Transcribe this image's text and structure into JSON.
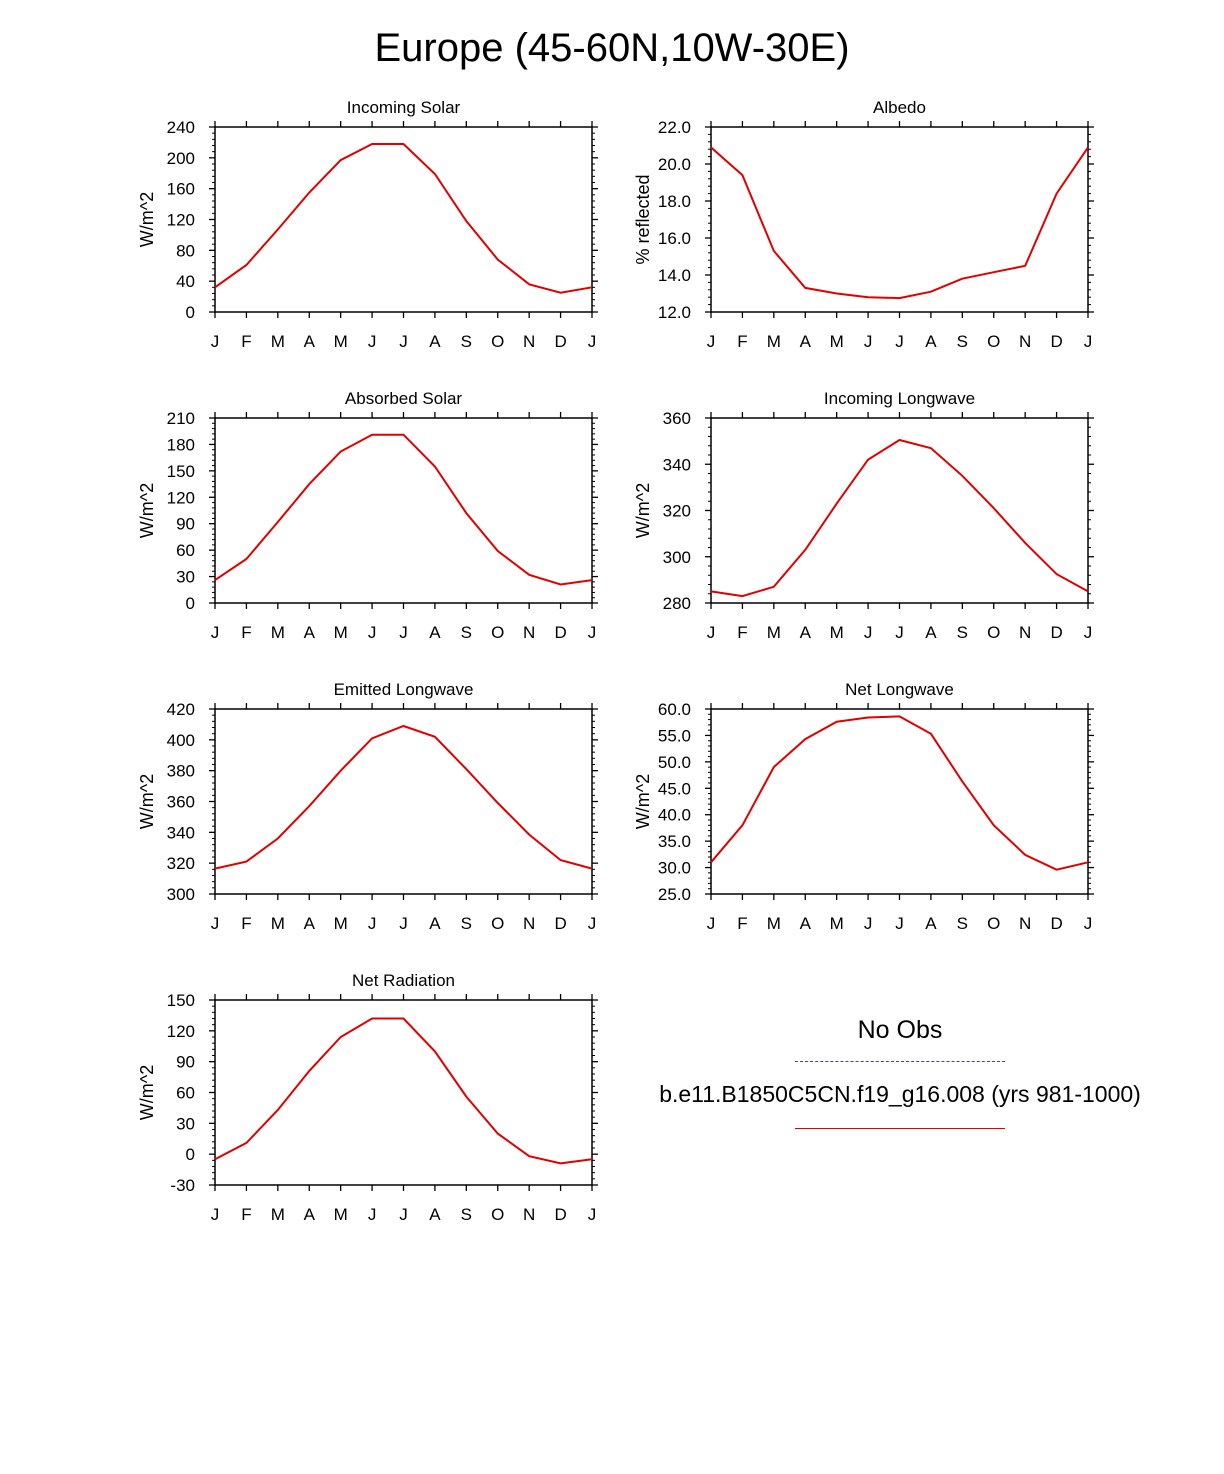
{
  "title": "Europe (45-60N,10W-30E)",
  "legend": {
    "obs_label": "No Obs",
    "case_label": "b.e11.B1850C5CN.f19_g16.008 (yrs 981-1000)",
    "obs_color": "#3b3bd8",
    "case_color": "#e00000"
  },
  "chart_data": [
    {
      "type": "line",
      "title": "Incoming Solar",
      "ylabel": "W/m^2",
      "x": [
        "J",
        "F",
        "M",
        "A",
        "M",
        "J",
        "J",
        "A",
        "S",
        "O",
        "N",
        "D",
        "J"
      ],
      "ylim": [
        0,
        240
      ],
      "yticks": [
        "0",
        "40",
        "80",
        "120",
        "160",
        "200",
        "240"
      ],
      "series": [
        {
          "name": "b.e11.B1850C5CN.f19_g16.008 (yrs 981-1000)",
          "values": [
            32,
            61,
            107,
            155,
            197,
            218,
            218,
            179,
            118,
            68,
            36,
            25,
            32
          ]
        }
      ]
    },
    {
      "type": "line",
      "title": "Albedo",
      "ylabel": "% reflected",
      "x": [
        "J",
        "F",
        "M",
        "A",
        "M",
        "J",
        "J",
        "A",
        "S",
        "O",
        "N",
        "D",
        "J"
      ],
      "ylim": [
        12.0,
        22.0
      ],
      "yticks": [
        "12.0",
        "14.0",
        "16.0",
        "18.0",
        "20.0",
        "22.0"
      ],
      "series": [
        {
          "name": "b.e11.B1850C5CN.f19_g16.008 (yrs 981-1000)",
          "values": [
            20.9,
            19.4,
            15.3,
            13.3,
            13.0,
            12.8,
            12.75,
            13.1,
            13.8,
            14.15,
            14.5,
            18.4,
            20.9
          ]
        }
      ]
    },
    {
      "type": "line",
      "title": "Absorbed Solar",
      "ylabel": "W/m^2",
      "x": [
        "J",
        "F",
        "M",
        "A",
        "M",
        "J",
        "J",
        "A",
        "S",
        "O",
        "N",
        "D",
        "J"
      ],
      "ylim": [
        0,
        210
      ],
      "yticks": [
        "0",
        "30",
        "60",
        "90",
        "120",
        "150",
        "180",
        "210"
      ],
      "series": [
        {
          "name": "b.e11.B1850C5CN.f19_g16.008 (yrs 981-1000)",
          "values": [
            26,
            50,
            92,
            135,
            172,
            191,
            191,
            155,
            102,
            59,
            32,
            21,
            26
          ]
        }
      ]
    },
    {
      "type": "line",
      "title": "Incoming Longwave",
      "ylabel": "W/m^2",
      "x": [
        "J",
        "F",
        "M",
        "A",
        "M",
        "J",
        "J",
        "A",
        "S",
        "O",
        "N",
        "D",
        "J"
      ],
      "ylim": [
        280,
        360
      ],
      "yticks": [
        "280",
        "300",
        "320",
        "340",
        "360"
      ],
      "series": [
        {
          "name": "b.e11.B1850C5CN.f19_g16.008 (yrs 981-1000)",
          "values": [
            285,
            283,
            287,
            303,
            323,
            342,
            350.5,
            347,
            335,
            321,
            306,
            292.5,
            285
          ]
        }
      ]
    },
    {
      "type": "line",
      "title": "Emitted Longwave",
      "ylabel": "W/m^2",
      "x": [
        "J",
        "F",
        "M",
        "A",
        "M",
        "J",
        "J",
        "A",
        "S",
        "O",
        "N",
        "D",
        "J"
      ],
      "ylim": [
        300,
        420
      ],
      "yticks": [
        "300",
        "320",
        "340",
        "360",
        "380",
        "400",
        "420"
      ],
      "series": [
        {
          "name": "b.e11.B1850C5CN.f19_g16.008 (yrs 981-1000)",
          "values": [
            316.5,
            321,
            336,
            357,
            380,
            401,
            409,
            402,
            381,
            359,
            338.5,
            322,
            316.5
          ]
        }
      ]
    },
    {
      "type": "line",
      "title": "Net Longwave",
      "ylabel": "W/m^2",
      "x": [
        "J",
        "F",
        "M",
        "A",
        "M",
        "J",
        "J",
        "A",
        "S",
        "O",
        "N",
        "D",
        "J"
      ],
      "ylim": [
        25.0,
        60.0
      ],
      "yticks": [
        "25.0",
        "30.0",
        "35.0",
        "40.0",
        "45.0",
        "50.0",
        "55.0",
        "60.0"
      ],
      "series": [
        {
          "name": "b.e11.B1850C5CN.f19_g16.008 (yrs 981-1000)",
          "values": [
            31.0,
            38.0,
            49.0,
            54.3,
            57.6,
            58.4,
            58.6,
            55.3,
            46.3,
            38.0,
            32.4,
            29.6,
            31.0
          ]
        }
      ]
    },
    {
      "type": "line",
      "title": "Net Radiation",
      "ylabel": "W/m^2",
      "x": [
        "J",
        "F",
        "M",
        "A",
        "M",
        "J",
        "J",
        "A",
        "S",
        "O",
        "N",
        "D",
        "J"
      ],
      "ylim": [
        -30,
        150
      ],
      "yticks": [
        "-30",
        "0",
        "30",
        "60",
        "90",
        "120",
        "150"
      ],
      "series": [
        {
          "name": "b.e11.B1850C5CN.f19_g16.008 (yrs 981-1000)",
          "values": [
            -5,
            11,
            43,
            81,
            114,
            132,
            132,
            100,
            56,
            20,
            -2,
            -9,
            -5
          ]
        }
      ]
    }
  ]
}
